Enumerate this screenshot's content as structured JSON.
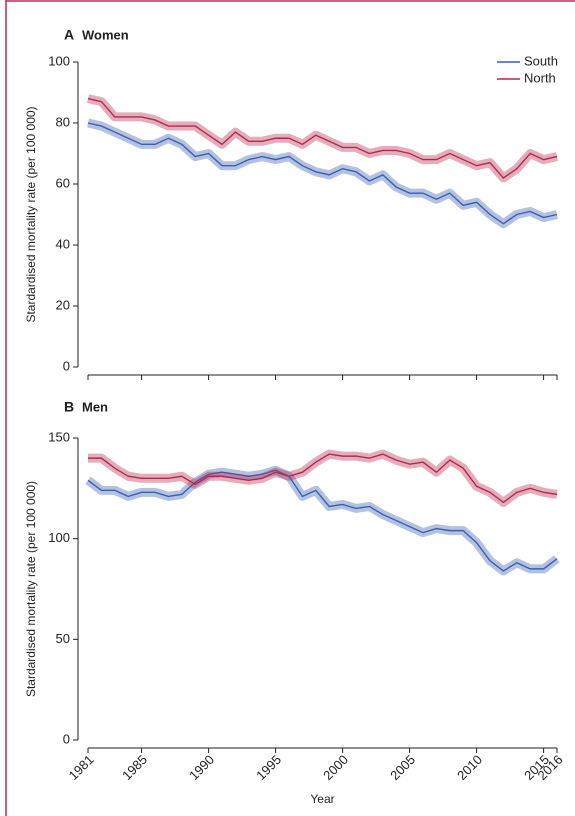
{
  "chart_data": [
    {
      "type": "line",
      "panel": "A",
      "title": "Women",
      "y_label": "Stardardised mortality rate (per 100 000)",
      "x": [
        1981,
        1982,
        1983,
        1984,
        1985,
        1986,
        1987,
        1988,
        1989,
        1990,
        1991,
        1992,
        1993,
        1994,
        1995,
        1996,
        1997,
        1998,
        1999,
        2000,
        2001,
        2002,
        2003,
        2004,
        2005,
        2006,
        2007,
        2008,
        2009,
        2010,
        2011,
        2012,
        2013,
        2014,
        2015,
        2016
      ],
      "series": [
        {
          "name": "South",
          "color": "#3a5fb0",
          "values": [
            80,
            79,
            77,
            75,
            73,
            73,
            75,
            73,
            69,
            70,
            66,
            66,
            68,
            69,
            68,
            69,
            66,
            64,
            63,
            65,
            64,
            61,
            63,
            59,
            57,
            57,
            55,
            57,
            53,
            54,
            50,
            47,
            50,
            51,
            49,
            50
          ]
        },
        {
          "name": "North",
          "color": "#b5284e",
          "values": [
            88,
            87,
            82,
            82,
            82,
            81,
            79,
            79,
            79,
            76,
            73,
            77,
            74,
            74,
            75,
            75,
            73,
            76,
            74,
            72,
            72,
            70,
            71,
            71,
            70,
            68,
            68,
            70,
            68,
            66,
            67,
            62,
            65,
            70,
            68,
            69
          ]
        }
      ],
      "xlim": [
        1981,
        2016
      ],
      "xticks": [
        1981,
        1985,
        1990,
        1995,
        2000,
        2005,
        2010,
        2015,
        2016
      ],
      "ylim": [
        0,
        100
      ],
      "yticks": [
        0,
        20,
        40,
        60,
        80,
        100
      ],
      "legend": "upper right"
    },
    {
      "type": "line",
      "panel": "B",
      "title": "Men",
      "y_label": "Stardardised mortality rate (per 100 000)",
      "x_label": "Year",
      "x": [
        1981,
        1982,
        1983,
        1984,
        1985,
        1986,
        1987,
        1988,
        1989,
        1990,
        1991,
        1992,
        1993,
        1994,
        1995,
        1996,
        1997,
        1998,
        1999,
        2000,
        2001,
        2002,
        2003,
        2004,
        2005,
        2006,
        2007,
        2008,
        2009,
        2010,
        2011,
        2012,
        2013,
        2014,
        2015,
        2016
      ],
      "series": [
        {
          "color": "#3a5fb0",
          "values": [
            129,
            124,
            124,
            121,
            123,
            123,
            121,
            122,
            128,
            132,
            133,
            132,
            131,
            132,
            134,
            131,
            121,
            124,
            116,
            117,
            115,
            116,
            112,
            109,
            106,
            103,
            105,
            104,
            104,
            98,
            89,
            84,
            88,
            85,
            85,
            90
          ]
        },
        {
          "color": "#b5284e",
          "values": [
            140,
            140,
            135,
            131,
            130,
            130,
            130,
            131,
            127,
            131,
            131,
            130,
            129,
            130,
            133,
            131,
            133,
            138,
            142,
            141,
            141,
            140,
            142,
            139,
            137,
            138,
            133,
            139,
            135,
            126,
            123,
            118,
            123,
            125,
            123,
            122
          ]
        }
      ],
      "xlim": [
        1981,
        2016
      ],
      "xticks": [
        1981,
        1985,
        1990,
        1995,
        2000,
        2005,
        2010,
        2015,
        2016
      ],
      "ylim": [
        0,
        150
      ],
      "yticks": [
        0,
        50,
        100,
        150
      ]
    }
  ]
}
